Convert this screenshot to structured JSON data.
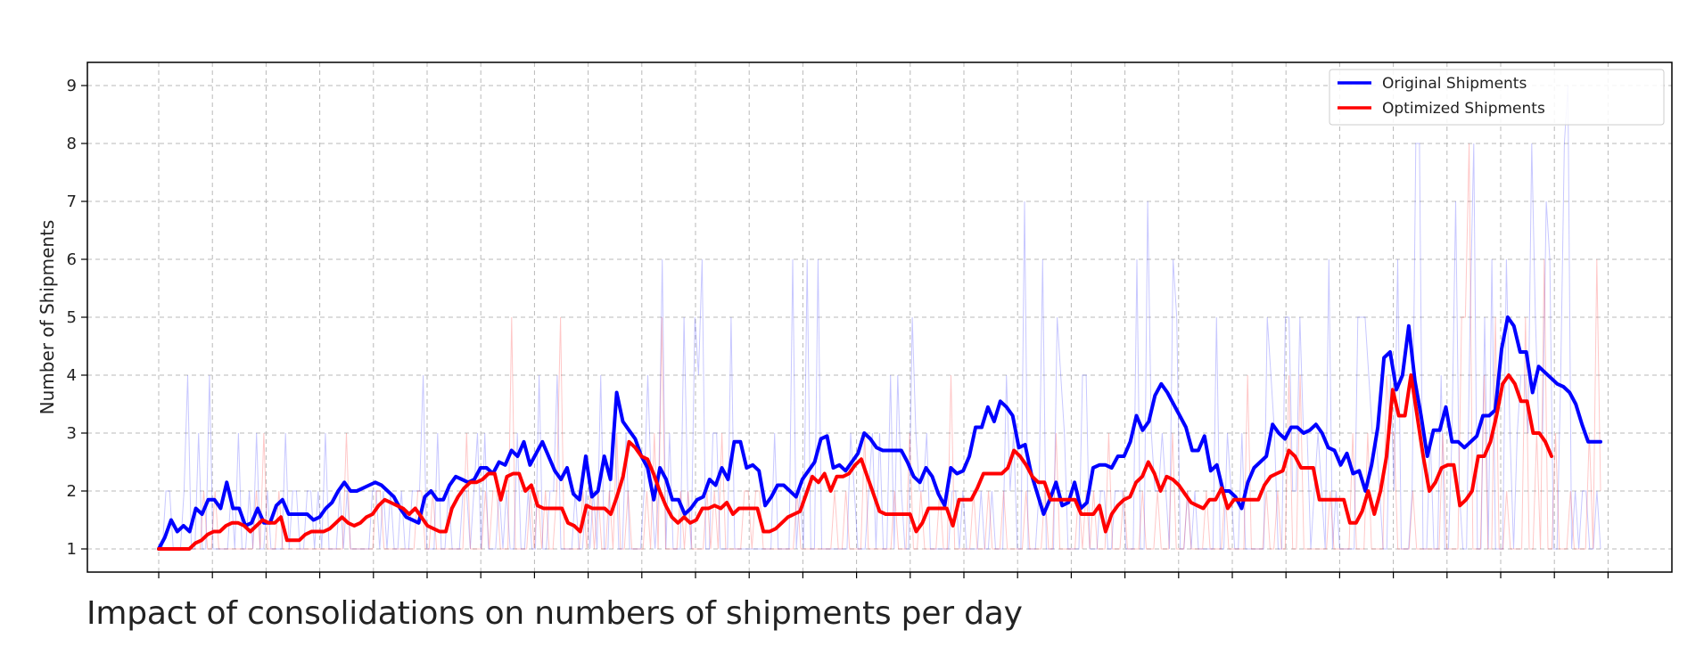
{
  "caption": "Impact of consolidations on numbers of shipments per day",
  "chart_data": {
    "type": "line",
    "title": "",
    "xlabel": "",
    "ylabel": "Number of Shipments",
    "x_tick_labels_shown": false,
    "ylim": [
      0.6,
      9.4
    ],
    "yticks": [
      1,
      2,
      3,
      4,
      5,
      6,
      7,
      8,
      9
    ],
    "grid": true,
    "legend_position": "top-right",
    "legend": [
      {
        "name": "Original Shipments",
        "color": "#0000ff"
      },
      {
        "name": "Optimized Shipments",
        "color": "#ff0000"
      }
    ],
    "series": [
      {
        "name": "Original Shipments",
        "role": "rolling_average",
        "color": "#0000ff",
        "values": [
          1.0,
          1.2,
          1.5,
          1.3,
          1.4,
          1.3,
          1.7,
          1.6,
          1.85,
          1.85,
          1.7,
          2.15,
          1.7,
          1.7,
          1.4,
          1.45,
          1.7,
          1.45,
          1.45,
          1.75,
          1.85,
          1.6,
          1.6,
          1.6,
          1.6,
          1.5,
          1.55,
          1.7,
          1.8,
          2.0,
          2.15,
          2.0,
          2.0,
          2.05,
          2.1,
          2.15,
          2.1,
          2.0,
          1.9,
          1.7,
          1.55,
          1.5,
          1.45,
          1.9,
          2.0,
          1.85,
          1.85,
          2.1,
          2.25,
          2.2,
          2.15,
          2.2,
          2.4,
          2.4,
          2.3,
          2.5,
          2.45,
          2.7,
          2.6,
          2.85,
          2.45,
          2.65,
          2.85,
          2.6,
          2.35,
          2.2,
          2.4,
          1.95,
          1.85,
          2.6,
          1.9,
          2.0,
          2.6,
          2.2,
          3.7,
          3.2,
          3.05,
          2.9,
          2.6,
          2.4,
          1.85,
          2.4,
          2.2,
          1.85,
          1.85,
          1.6,
          1.7,
          1.85,
          1.9,
          2.2,
          2.1,
          2.4,
          2.2,
          2.85,
          2.85,
          2.4,
          2.45,
          2.35,
          1.75,
          1.9,
          2.1,
          2.1,
          2.0,
          1.9,
          2.2,
          2.35,
          2.5,
          2.9,
          2.95,
          2.4,
          2.45,
          2.35,
          2.5,
          2.65,
          3.0,
          2.9,
          2.75,
          2.7,
          2.7,
          2.7,
          2.7,
          2.5,
          2.25,
          2.15,
          2.4,
          2.25,
          1.95,
          1.75,
          2.4,
          2.3,
          2.35,
          2.6,
          3.1,
          3.1,
          3.45,
          3.2,
          3.55,
          3.45,
          3.3,
          2.75,
          2.8,
          2.3,
          1.95,
          1.6,
          1.85,
          2.15,
          1.75,
          1.8,
          2.15,
          1.7,
          1.8,
          2.4,
          2.45,
          2.45,
          2.4,
          2.6,
          2.6,
          2.85,
          3.3,
          3.05,
          3.2,
          3.65,
          3.85,
          3.7,
          3.5,
          3.3,
          3.1,
          2.7,
          2.7,
          2.95,
          2.35,
          2.45,
          2.0,
          2.0,
          1.9,
          1.7,
          2.15,
          2.4,
          2.5,
          2.6,
          3.15,
          3.0,
          2.9,
          3.1,
          3.1,
          3.0,
          3.05,
          3.15,
          3.0,
          2.75,
          2.7,
          2.45,
          2.65,
          2.3,
          2.35,
          2.0,
          2.45,
          3.1,
          4.3,
          4.4,
          3.75,
          4.0,
          4.85,
          3.9,
          3.3,
          2.6,
          3.05,
          3.05,
          3.45,
          2.85,
          2.85,
          2.75,
          2.85,
          2.95,
          3.3,
          3.3,
          3.4,
          4.45,
          5.0,
          4.85,
          4.4,
          4.4,
          3.7,
          4.15,
          4.05,
          3.95,
          3.85,
          3.8,
          3.7,
          3.5,
          3.15,
          2.85,
          2.85,
          2.85
        ]
      },
      {
        "name": "Optimized Shipments",
        "role": "rolling_average",
        "color": "#ff0000",
        "values": [
          1.0,
          1.0,
          1.0,
          1.0,
          1.0,
          1.0,
          1.1,
          1.15,
          1.25,
          1.3,
          1.3,
          1.4,
          1.45,
          1.45,
          1.4,
          1.3,
          1.4,
          1.5,
          1.45,
          1.45,
          1.55,
          1.15,
          1.15,
          1.15,
          1.25,
          1.3,
          1.3,
          1.3,
          1.35,
          1.45,
          1.55,
          1.45,
          1.4,
          1.45,
          1.55,
          1.6,
          1.75,
          1.85,
          1.8,
          1.75,
          1.7,
          1.6,
          1.7,
          1.55,
          1.4,
          1.35,
          1.3,
          1.3,
          1.7,
          1.9,
          2.05,
          2.15,
          2.15,
          2.2,
          2.3,
          2.3,
          1.85,
          2.25,
          2.3,
          2.3,
          2.0,
          2.1,
          1.75,
          1.7,
          1.7,
          1.7,
          1.7,
          1.45,
          1.4,
          1.3,
          1.75,
          1.7,
          1.7,
          1.7,
          1.6,
          1.9,
          2.25,
          2.85,
          2.75,
          2.6,
          2.55,
          2.3,
          2.0,
          1.75,
          1.55,
          1.45,
          1.55,
          1.45,
          1.5,
          1.7,
          1.7,
          1.75,
          1.7,
          1.8,
          1.6,
          1.7,
          1.7,
          1.7,
          1.7,
          1.3,
          1.3,
          1.35,
          1.45,
          1.55,
          1.6,
          1.65,
          1.95,
          2.25,
          2.15,
          2.3,
          2.0,
          2.25,
          2.25,
          2.3,
          2.45,
          2.55,
          2.25,
          1.95,
          1.65,
          1.6,
          1.6,
          1.6,
          1.6,
          1.6,
          1.3,
          1.45,
          1.7,
          1.7,
          1.7,
          1.7,
          1.4,
          1.85,
          1.85,
          1.85,
          2.05,
          2.3,
          2.3,
          2.3,
          2.3,
          2.4,
          2.7,
          2.6,
          2.45,
          2.25,
          2.15,
          2.15,
          1.85,
          1.85,
          1.85,
          1.85,
          1.85,
          1.6,
          1.6,
          1.6,
          1.75,
          1.3,
          1.6,
          1.75,
          1.85,
          1.9,
          2.15,
          2.25,
          2.5,
          2.3,
          2.0,
          2.25,
          2.2,
          2.1,
          1.95,
          1.8,
          1.75,
          1.7,
          1.85,
          1.85,
          2.05,
          1.7,
          1.85,
          1.85,
          1.85,
          1.85,
          1.85,
          2.1,
          2.25,
          2.3,
          2.35,
          2.7,
          2.6,
          2.4,
          2.4,
          2.4,
          1.85,
          1.85,
          1.85,
          1.85,
          1.85,
          1.45,
          1.45,
          1.65,
          2.0,
          1.6,
          2.0,
          2.6,
          3.75,
          3.3,
          3.3,
          4.0,
          3.3,
          2.6,
          2.0,
          2.15,
          2.4,
          2.45,
          2.45,
          1.75,
          1.85,
          2.0,
          2.6,
          2.6,
          2.85,
          3.3,
          3.85,
          4.0,
          3.85,
          3.55,
          3.55,
          3.0,
          3.0,
          2.85,
          2.6
        ]
      },
      {
        "name": "Original Shipments (daily)",
        "role": "raw_daily",
        "color": "#0000ff",
        "values": [
          1,
          1,
          2,
          2,
          1,
          1,
          1,
          2,
          4,
          1,
          1,
          3,
          1,
          1,
          4,
          1,
          1,
          1,
          1,
          1,
          2,
          1,
          3,
          1,
          1,
          2,
          1,
          3,
          1,
          1,
          2,
          1,
          1,
          1,
          1,
          3,
          1,
          2,
          2,
          1,
          1,
          2,
          2,
          1,
          2,
          1,
          3,
          1,
          1,
          1,
          2,
          1,
          2,
          1,
          1,
          1,
          1,
          1,
          1,
          2,
          2,
          1,
          2,
          1,
          2,
          1,
          1,
          2,
          1,
          1,
          2,
          2,
          2,
          4,
          1,
          1,
          1,
          3,
          1,
          1,
          2,
          1,
          1,
          1,
          2,
          2,
          1,
          2,
          3,
          1,
          3,
          1,
          1,
          1,
          2,
          1,
          2,
          1,
          1,
          3,
          1,
          1,
          2,
          1,
          1,
          4,
          1,
          1,
          2,
          2,
          4,
          1,
          1,
          1,
          1,
          2,
          1,
          1,
          2,
          1,
          2,
          1,
          4,
          1,
          1,
          3,
          3,
          1,
          1,
          3,
          1,
          1,
          1,
          1,
          2,
          4,
          2,
          1,
          2,
          6,
          1,
          3,
          1,
          1,
          1,
          5,
          2,
          1,
          5,
          4,
          6,
          1,
          1,
          3,
          3,
          1,
          1,
          1,
          5,
          1,
          1,
          1,
          1,
          1,
          1,
          1,
          1,
          1,
          1,
          1,
          3,
          1,
          1,
          1,
          1,
          6,
          1,
          2,
          1,
          6,
          1,
          1,
          6,
          1,
          1,
          1,
          1,
          1,
          1,
          1,
          1,
          3,
          2,
          1,
          1,
          1,
          2,
          3,
          1,
          3,
          1,
          1,
          4,
          1,
          4,
          2,
          1,
          1,
          5,
          3,
          2,
          2,
          3,
          1,
          1,
          1,
          1,
          1,
          1,
          2,
          2,
          1,
          2,
          1,
          1,
          1,
          1,
          2,
          1,
          1,
          2,
          1,
          1,
          1,
          4,
          2,
          3,
          1,
          1,
          7,
          1,
          1,
          1,
          2,
          6,
          1,
          1,
          1,
          5,
          4,
          3,
          1,
          1,
          1,
          1,
          4,
          4,
          1,
          1,
          1,
          2,
          2,
          1,
          1,
          2,
          2,
          2,
          1,
          1,
          1,
          6,
          1,
          1,
          7,
          3,
          2,
          2,
          3,
          2,
          1,
          6,
          5,
          1,
          1,
          2,
          1,
          2,
          1,
          1,
          1,
          1,
          1,
          5,
          1,
          1,
          3,
          2,
          1,
          1,
          3,
          1,
          1,
          1,
          1,
          1,
          1,
          5,
          4,
          3,
          1,
          1,
          5,
          5,
          2,
          2,
          5,
          3,
          3,
          1,
          2,
          3,
          2,
          1,
          6,
          1,
          2,
          1,
          1,
          1,
          1,
          1,
          5,
          5,
          5,
          4,
          3,
          3,
          2,
          1,
          1,
          4,
          2,
          6,
          1,
          1,
          1,
          2,
          8,
          8,
          1,
          1,
          3,
          1,
          1,
          4,
          1,
          1,
          3,
          7,
          2,
          1,
          1,
          5,
          8,
          1,
          1,
          5,
          1,
          6,
          1,
          1,
          1,
          6,
          3,
          1,
          3,
          4,
          4,
          3,
          8,
          5,
          3,
          3,
          7,
          6,
          1,
          1,
          4,
          8,
          9,
          1,
          2,
          1,
          2,
          2,
          1,
          1,
          2,
          1
        ]
      },
      {
        "name": "Optimized Shipments (daily)",
        "role": "raw_daily",
        "color": "#ff0000",
        "values": [
          1,
          1,
          1,
          1,
          1,
          1,
          1,
          1,
          1,
          1,
          1,
          1,
          2,
          1,
          1,
          2,
          1,
          1,
          1,
          1,
          1,
          1,
          1,
          1,
          1,
          1,
          2,
          1,
          3,
          1,
          1,
          1,
          2,
          1,
          1,
          1,
          1,
          1,
          1,
          1,
          1,
          1,
          1,
          1,
          1,
          1,
          1,
          1,
          1,
          1,
          3,
          1,
          1,
          1,
          1,
          1,
          1,
          1,
          2,
          2,
          1,
          1,
          1,
          1,
          1,
          1,
          1,
          1,
          1,
          2,
          2,
          1,
          1,
          2,
          1,
          1,
          1,
          1,
          1,
          1,
          1,
          1,
          3,
          1,
          1,
          1,
          1,
          2,
          1,
          2,
          2,
          1,
          1,
          1,
          5,
          1,
          1,
          1,
          1,
          2,
          1,
          2,
          1,
          2,
          1,
          1,
          2,
          5,
          1,
          1,
          1,
          1,
          1,
          2,
          1,
          2,
          1,
          2,
          1,
          1,
          2,
          1,
          3,
          1,
          1,
          2,
          1,
          1,
          1,
          1,
          2,
          1,
          3,
          1,
          5,
          1,
          1,
          1,
          1,
          2,
          1,
          2,
          1,
          1,
          1,
          1,
          2,
          1,
          2,
          1,
          3,
          1,
          1,
          1,
          1,
          1,
          2,
          2,
          1,
          2,
          2,
          1,
          1,
          1,
          1,
          1,
          1,
          1,
          1,
          1,
          2,
          1,
          1,
          1,
          1,
          1,
          1,
          1,
          1,
          1,
          2,
          1,
          1,
          2,
          1,
          1,
          1,
          1,
          3,
          1,
          1,
          1,
          1,
          1,
          1,
          1,
          2,
          1,
          1,
          1,
          3,
          1,
          1,
          2,
          1,
          1,
          1,
          1,
          2,
          1,
          1,
          4,
          1,
          1,
          1,
          1,
          1,
          2,
          1,
          1,
          1,
          2,
          1,
          1,
          1,
          2,
          1,
          1,
          1,
          1,
          1,
          2,
          1,
          1,
          1,
          1,
          2,
          1,
          1,
          3,
          1,
          1,
          1,
          1,
          1,
          2,
          1,
          2,
          1,
          2,
          1,
          1,
          1,
          3,
          1,
          1,
          1,
          2,
          1,
          1,
          1,
          1,
          2,
          1,
          1,
          1,
          2,
          1,
          1,
          1,
          3,
          1,
          1,
          1,
          2,
          1,
          1,
          1,
          1,
          2,
          1,
          1,
          1,
          1,
          2,
          1,
          1,
          1,
          1,
          1,
          4,
          1,
          1,
          1,
          1,
          2,
          1,
          1,
          2,
          1,
          1,
          4,
          1,
          1,
          4,
          1,
          1,
          1,
          1,
          1,
          1,
          1,
          2,
          1,
          1,
          1,
          1,
          1,
          3,
          1,
          1,
          1,
          3,
          1,
          1,
          1,
          1,
          4,
          3,
          3,
          1,
          1,
          1,
          1,
          2,
          1,
          1,
          1,
          1,
          1,
          1,
          1,
          3,
          1,
          1,
          1,
          1,
          5,
          5,
          8,
          1,
          1,
          1,
          4,
          1,
          1,
          5,
          1,
          1,
          2,
          1,
          1,
          1,
          1,
          5,
          1,
          1,
          3,
          1,
          6,
          1,
          1,
          3,
          1,
          1,
          1,
          2,
          1,
          1,
          1,
          1,
          3,
          1,
          6,
          2
        ]
      }
    ]
  }
}
